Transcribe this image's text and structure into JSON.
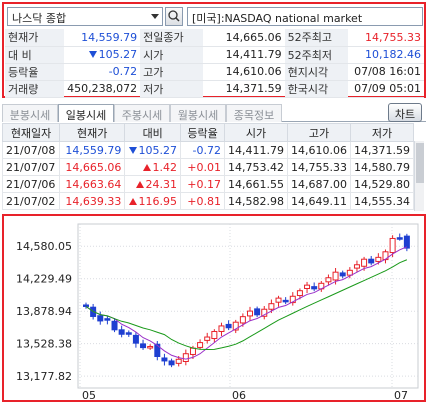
{
  "search": {
    "market_select": "나스닥 종합",
    "symbol_name": "[미국]:NASDAQ national market"
  },
  "quote": {
    "rows": [
      {
        "l1": "현재가",
        "v1": "14,559.79",
        "l2": "전일종가",
        "v2": "14,665.06",
        "l3": "52주최고",
        "v3": "14,755.33"
      },
      {
        "l1": "대  비",
        "v1": "105.27",
        "l2": "시가",
        "v2": "14,411.79",
        "l3": "52주최저",
        "v3": "10,182.46"
      },
      {
        "l1": "등락율",
        "v1": "-0.72",
        "l2": "고가",
        "v2": "14,610.06",
        "l3": "현지시각",
        "v3": "07/08 16:01"
      },
      {
        "l1": "거래량",
        "v1": "450,238,072",
        "l2": "저가",
        "v2": "14,371.59",
        "l3": "한국시각",
        "v3": "07/09 05:01"
      }
    ]
  },
  "tabs": [
    {
      "label": "분봉시세"
    },
    {
      "label": "일봉시세"
    },
    {
      "label": "주봉시세"
    },
    {
      "label": "월봉시세"
    },
    {
      "label": "종목정보"
    }
  ],
  "chart_button": "차트",
  "daily": {
    "headers": [
      "현재일자",
      "현재가",
      "대비",
      "등락율",
      "시가",
      "고가",
      "저가"
    ],
    "rows": [
      {
        "date": "21/07/08",
        "close": "14,559.79",
        "dir": "down",
        "change": "105.27",
        "rate": "-0.72",
        "open": "14,411.79",
        "high": "14,610.06",
        "low": "14,371.59"
      },
      {
        "date": "21/07/07",
        "close": "14,665.06",
        "dir": "up",
        "change": "1.42",
        "rate": "+0.01",
        "open": "14,753.42",
        "high": "14,755.33",
        "low": "14,580.79"
      },
      {
        "date": "21/07/06",
        "close": "14,663.64",
        "dir": "up",
        "change": "24.31",
        "rate": "+0.17",
        "open": "14,661.55",
        "high": "14,687.00",
        "low": "14,529.80"
      },
      {
        "date": "21/07/02",
        "close": "14,639.33",
        "dir": "up",
        "change": "116.95",
        "rate": "+0.81",
        "open": "14,582.98",
        "high": "14,649.11",
        "low": "14,555.34"
      }
    ]
  },
  "chart_data": {
    "type": "candlestick",
    "y_ticks": [
      "14,580.05",
      "14,229.49",
      "13,878.94",
      "13,528.38",
      "13,177.82"
    ],
    "y_tick_values": [
      14580.05,
      14229.49,
      13878.94,
      13528.38,
      13177.82
    ],
    "x_ticks": [
      "05",
      "06",
      "07"
    ],
    "ylim": [
      13050,
      14820
    ],
    "up_color": "#e8222a",
    "down_color": "#1e3fd1",
    "ma_colors": [
      "#9b30c9",
      "#1a9a1a"
    ],
    "grid": true
  }
}
